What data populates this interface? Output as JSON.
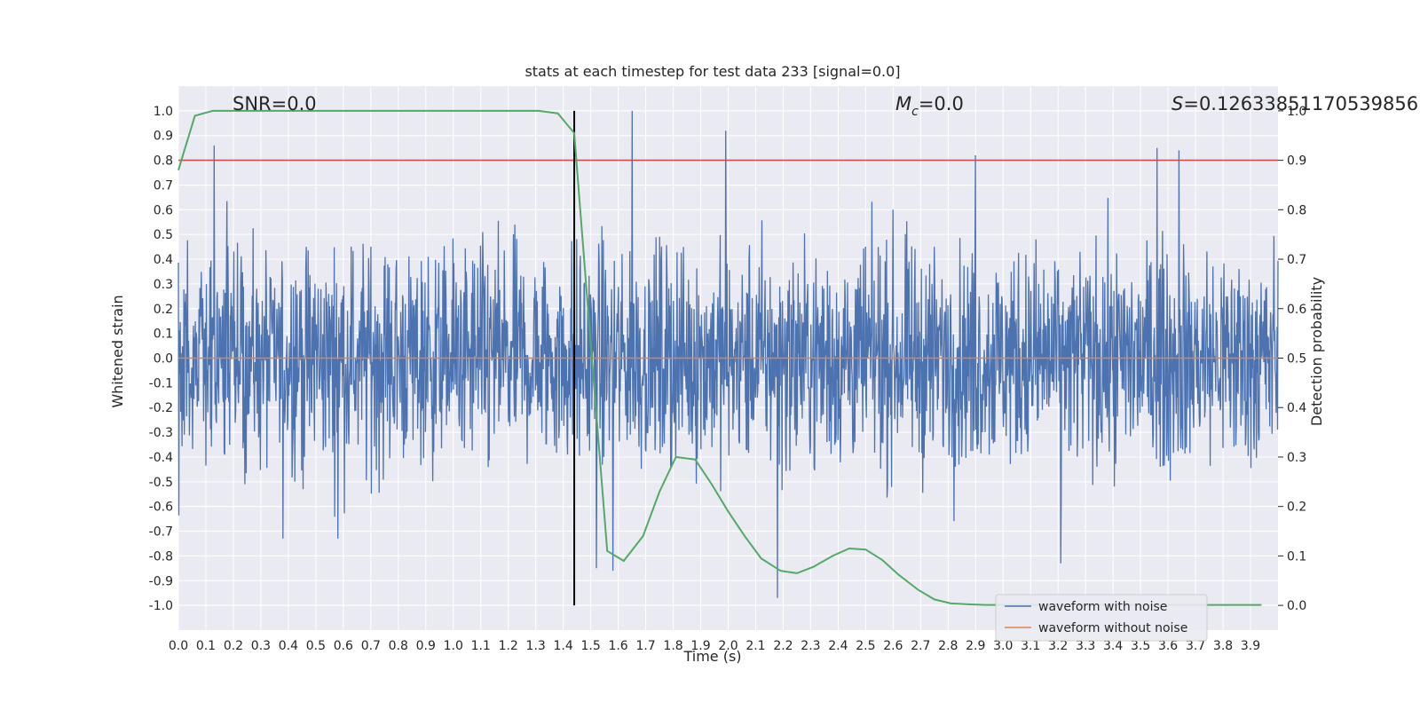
{
  "chart_data": {
    "type": "line",
    "title": "stats at each timestep for test data 233 [signal=0.0]",
    "xlabel": "Time (s)",
    "ylabel": "Whitened strain",
    "y2label": "Detection probability",
    "xlim": [
      0.0,
      4.0
    ],
    "ylim": [
      -1.1,
      1.1
    ],
    "y2lim": [
      -0.05,
      1.05
    ],
    "x_ticks": [
      "0.0",
      "0.1",
      "0.2",
      "0.3",
      "0.4",
      "0.5",
      "0.6",
      "0.7",
      "0.8",
      "0.9",
      "1.0",
      "1.1",
      "1.2",
      "1.3",
      "1.4",
      "1.5",
      "1.6",
      "1.7",
      "1.8",
      "1.9",
      "2.0",
      "2.1",
      "2.2",
      "2.3",
      "2.4",
      "2.5",
      "2.6",
      "2.7",
      "2.8",
      "2.9",
      "3.0",
      "3.1",
      "3.2",
      "3.3",
      "3.4",
      "3.5",
      "3.6",
      "3.7",
      "3.8",
      "3.9"
    ],
    "y_ticks": [
      "1.0",
      "0.9",
      "0.8",
      "0.7",
      "0.6",
      "0.5",
      "0.4",
      "0.3",
      "0.2",
      "0.1",
      "0.0",
      "-0.1",
      "-0.2",
      "-0.3",
      "-0.4",
      "-0.5",
      "-0.6",
      "-0.7",
      "-0.8",
      "-0.9",
      "-1.0"
    ],
    "y2_ticks": [
      "1.0",
      "0.9",
      "0.8",
      "0.7",
      "0.6",
      "0.5",
      "0.4",
      "0.3",
      "0.2",
      "0.1",
      "0.0"
    ],
    "annotations": {
      "snr": "SNR=0.0",
      "mc_symbol": "M",
      "mc_sub": "c",
      "mc_value": "=0.0",
      "s_symbol": "S",
      "s_value": "=0.12633851170539856"
    },
    "threshold": 0.9,
    "marker_time": 1.44,
    "legend": {
      "placement": "lower-right",
      "entries": [
        "waveform with noise",
        "waveform without noise"
      ]
    },
    "series": [
      {
        "name": "waveform with noise",
        "color": "#4c72b0",
        "axis": "left",
        "style": "noise",
        "seed": 233,
        "points": 2400,
        "amplitude": 0.3,
        "peaks": [
          [
            0.13,
            0.86
          ],
          [
            1.65,
            1.0
          ],
          [
            1.99,
            0.92
          ],
          [
            2.9,
            0.82
          ],
          [
            3.56,
            0.85
          ],
          [
            3.64,
            0.84
          ],
          [
            0.38,
            -0.73
          ],
          [
            0.58,
            -0.73
          ],
          [
            1.52,
            -0.85
          ],
          [
            1.58,
            -0.86
          ],
          [
            2.18,
            -0.97
          ],
          [
            3.21,
            -0.83
          ]
        ]
      },
      {
        "name": "waveform without noise",
        "color": "#dd8452",
        "axis": "left",
        "x": [
          0.0,
          4.0
        ],
        "y": [
          0.0,
          0.0
        ]
      },
      {
        "name": "detection probability",
        "color": "#55a868",
        "axis": "right",
        "x": [
          0.0,
          0.06,
          0.125,
          0.19,
          0.25,
          0.31,
          0.38,
          0.44,
          0.5,
          0.56,
          0.62,
          0.69,
          0.75,
          0.81,
          0.88,
          0.94,
          1.0,
          1.06,
          1.12,
          1.19,
          1.25,
          1.31,
          1.38,
          1.44,
          1.5,
          1.56,
          1.62,
          1.69,
          1.75,
          1.81,
          1.88,
          1.94,
          2.0,
          2.06,
          2.12,
          2.19,
          2.25,
          2.31,
          2.38,
          2.44,
          2.5,
          2.56,
          2.62,
          2.69,
          2.75,
          2.81,
          2.88,
          2.94,
          3.0,
          3.06,
          3.12,
          3.19,
          3.25,
          3.31,
          3.38,
          3.44,
          3.5,
          3.56,
          3.62,
          3.69,
          3.75,
          3.81,
          3.88,
          3.94
        ],
        "y": [
          0.88,
          0.99,
          1.0,
          1.0,
          1.0,
          1.0,
          1.0,
          1.0,
          1.0,
          1.0,
          1.0,
          1.0,
          1.0,
          1.0,
          1.0,
          1.0,
          1.0,
          1.0,
          1.0,
          1.0,
          1.0,
          1.0,
          0.995,
          0.955,
          0.53,
          0.11,
          0.09,
          0.14,
          0.23,
          0.3,
          0.295,
          0.245,
          0.19,
          0.14,
          0.095,
          0.07,
          0.065,
          0.078,
          0.1,
          0.115,
          0.113,
          0.092,
          0.062,
          0.032,
          0.012,
          0.004,
          0.002,
          0.001,
          0.001,
          0.001,
          0.001,
          0.001,
          0.001,
          0.001,
          0.001,
          0.001,
          0.001,
          0.001,
          0.001,
          0.001,
          0.001,
          0.001,
          0.001,
          0.001
        ]
      }
    ]
  }
}
